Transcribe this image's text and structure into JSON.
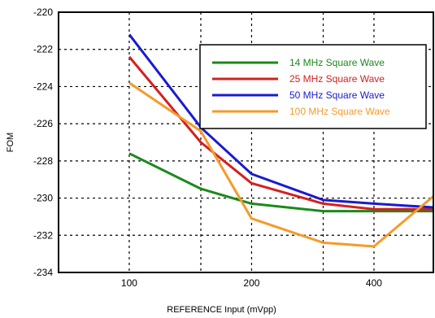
{
  "chart_data": {
    "type": "line",
    "xlabel": "REFERENCE Input (mVpp)",
    "ylabel": "FOM",
    "x_scale": "log",
    "xlim": [
      67,
      560
    ],
    "ylim": [
      -234,
      -220
    ],
    "x_ticks": [
      100,
      200,
      400
    ],
    "x_tick_labels": [
      "100",
      "200",
      "400"
    ],
    "y_ticks": [
      -234,
      -232,
      -230,
      -228,
      -226,
      -224,
      -222,
      -220
    ],
    "y_tick_labels": [
      "-234",
      "-232",
      "-230",
      "-228",
      "-226",
      "-224",
      "-222",
      "-220"
    ],
    "grid": true,
    "legend_position": "top-right",
    "x": [
      100,
      150,
      200,
      300,
      400,
      560
    ],
    "series": [
      {
        "name": "14 MHz Square Wave",
        "color": "#1a8a1a",
        "x": [
          100,
          150,
          200,
          300,
          400,
          560
        ],
        "values": [
          -227.6,
          -229.5,
          -230.3,
          -230.7,
          -230.7,
          -230.7
        ]
      },
      {
        "name": "25 MHz Square Wave",
        "color": "#d42020",
        "x": [
          100,
          150,
          200,
          300,
          400,
          560
        ],
        "values": [
          -222.4,
          -227.0,
          -229.2,
          -230.3,
          -230.6,
          -230.6
        ]
      },
      {
        "name": "50 MHz Square Wave",
        "color": "#1a1ad0",
        "x": [
          100,
          150,
          200,
          300,
          400,
          560
        ],
        "values": [
          -221.2,
          -226.2,
          -228.7,
          -230.1,
          -230.3,
          -230.5
        ]
      },
      {
        "name": "100 MHz Square Wave",
        "color": "#f59a2a",
        "x": [
          100,
          150,
          200,
          300,
          400,
          560
        ],
        "values": [
          -223.8,
          -226.4,
          -231.1,
          -232.4,
          -232.6,
          -229.9
        ]
      }
    ]
  }
}
